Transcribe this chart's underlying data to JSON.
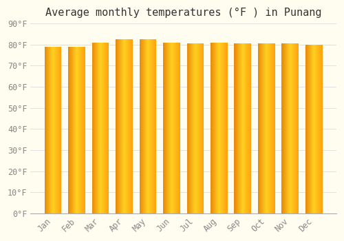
{
  "title": "Average monthly temperatures (°F ) in Punang",
  "months": [
    "Jan",
    "Feb",
    "Mar",
    "Apr",
    "May",
    "Jun",
    "Jul",
    "Aug",
    "Sep",
    "Oct",
    "Nov",
    "Dec"
  ],
  "values": [
    79,
    79,
    81,
    82.5,
    82.5,
    81,
    80.5,
    81,
    80.5,
    80.5,
    80.5,
    80
  ],
  "bar_color_left": "#E8880A",
  "bar_color_center": "#FFD020",
  "bar_color_right": "#FFBB10",
  "background_color": "#FFFDF0",
  "grid_color": "#E0E0E0",
  "ylim": [
    0,
    90
  ],
  "yticks": [
    0,
    10,
    20,
    30,
    40,
    50,
    60,
    70,
    80,
    90
  ],
  "ytick_labels": [
    "0°F",
    "10°F",
    "20°F",
    "30°F",
    "40°F",
    "50°F",
    "60°F",
    "70°F",
    "80°F",
    "90°F"
  ],
  "title_fontsize": 11,
  "tick_fontsize": 8.5,
  "font_family": "monospace"
}
